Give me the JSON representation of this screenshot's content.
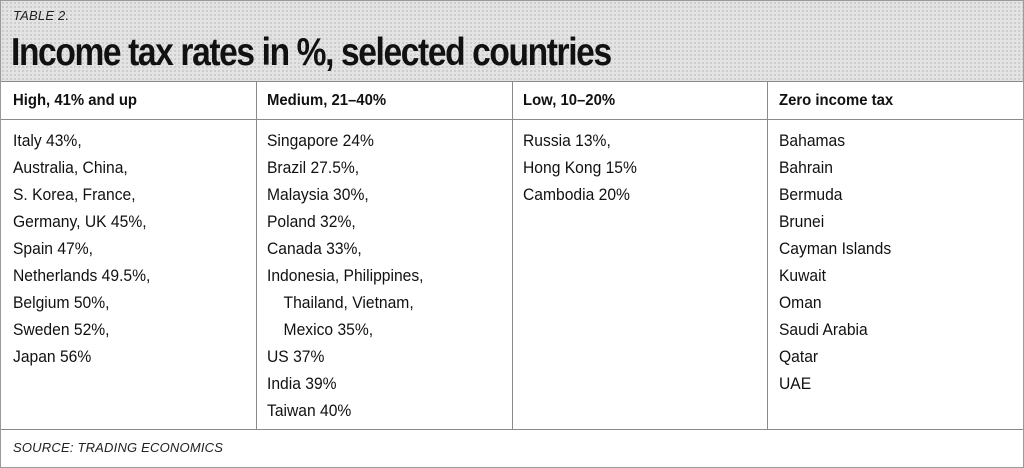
{
  "table_label": "TABLE 2.",
  "title": "Income tax rates in %, selected countries",
  "columns": [
    {
      "header": "High, 41% and up",
      "items": [
        "Italy 43%,",
        "Australia, China,",
        "S. Korea, France,",
        "Germany, UK 45%,",
        "Spain 47%,",
        "Netherlands 49.5%,",
        "Belgium 50%,",
        "Sweden 52%,",
        "Japan 56%"
      ]
    },
    {
      "header": "Medium, 21–40%",
      "items": [
        "Singapore 24%",
        "Brazil 27.5%,",
        "Malaysia 30%,",
        "Poland 32%,",
        "Canada 33%,",
        "Indonesia, Philippines,",
        "Thailand, Vietnam,",
        "Mexico 35%,",
        "US 37%",
        "India 39%",
        "Taiwan 40%"
      ]
    },
    {
      "header": "Low, 10–20%",
      "items": [
        "Russia 13%,",
        "Hong Kong 15%",
        "Cambodia 20%"
      ]
    },
    {
      "header": "Zero income tax",
      "items": [
        "Bahamas",
        "Bahrain",
        "Bermuda",
        "Brunei",
        "Cayman Islands",
        "Kuwait",
        "Oman",
        "Saudi Arabia",
        "Qatar",
        "UAE"
      ]
    }
  ],
  "source": "SOURCE: TRADING ECONOMICS"
}
